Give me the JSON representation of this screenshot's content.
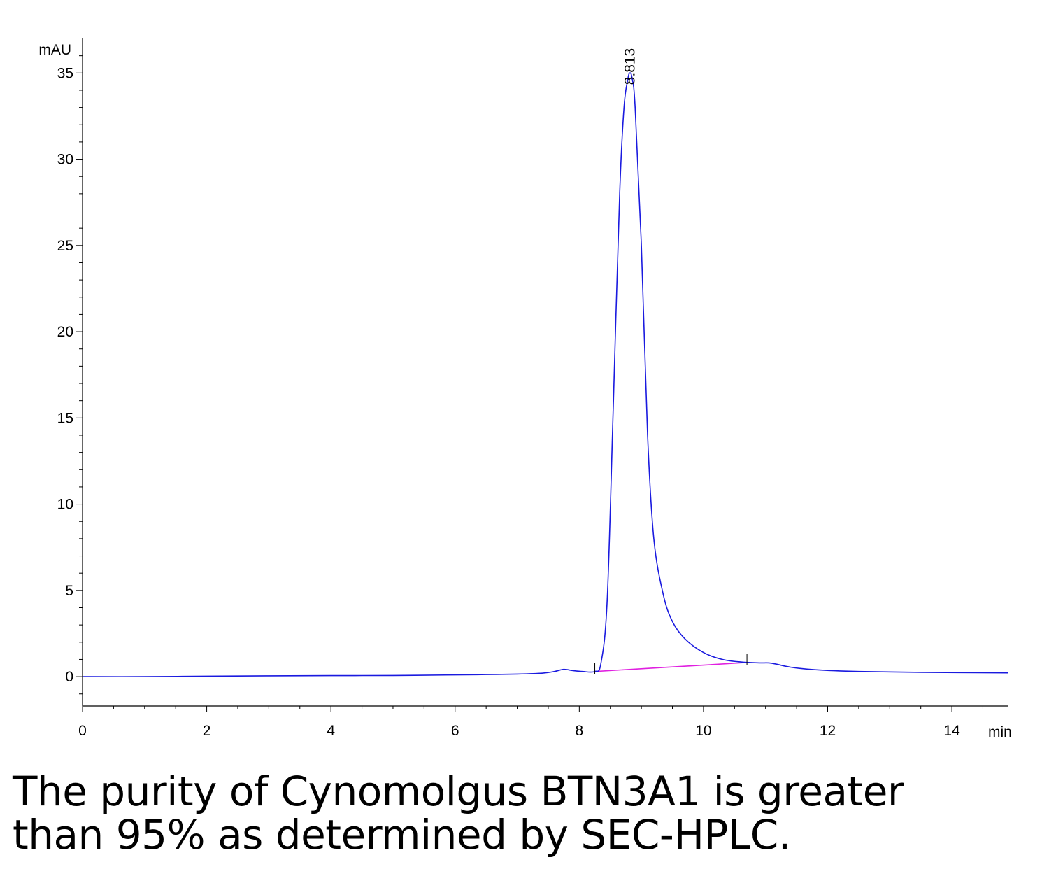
{
  "chart_data": {
    "type": "line",
    "ylabel": "mAU",
    "xlabel": "min",
    "xlim": [
      0,
      14.9
    ],
    "ylim": [
      -1.7,
      37
    ],
    "x_ticks": [
      "0",
      "2",
      "4",
      "6",
      "8",
      "10",
      "12",
      "14"
    ],
    "y_ticks": [
      "0",
      "5",
      "10",
      "15",
      "20",
      "25",
      "30",
      "35"
    ],
    "grid": false,
    "colors": {
      "trace": "#1a1adf",
      "baseline": "#e020e0",
      "axis": "#000000"
    },
    "peak_annotation": {
      "label": "8.813",
      "x": 8.813,
      "y": 35.0
    },
    "series": [
      {
        "x": [
          0,
          1.0,
          2.0,
          3.0,
          4.0,
          5.0,
          6.0,
          6.5,
          7.0,
          7.4,
          7.6,
          7.75,
          7.9,
          8.05,
          8.25,
          8.35,
          8.45,
          8.55,
          8.65,
          8.72,
          8.78,
          8.813,
          8.85,
          8.9,
          9.0,
          9.1,
          9.2,
          9.35,
          9.5,
          9.7,
          10.0,
          10.3,
          10.6,
          10.9,
          11.1,
          11.4,
          11.8,
          12.5,
          13.5,
          14.9
        ],
        "y": [
          0.0,
          0.0,
          0.03,
          0.05,
          0.06,
          0.07,
          0.1,
          0.12,
          0.15,
          0.2,
          0.3,
          0.42,
          0.35,
          0.3,
          0.3,
          0.8,
          4.5,
          16.0,
          28.0,
          33.0,
          34.6,
          35.0,
          34.7,
          33.0,
          25.0,
          14.0,
          8.0,
          4.8,
          3.2,
          2.2,
          1.4,
          1.0,
          0.85,
          0.8,
          0.78,
          0.55,
          0.4,
          0.3,
          0.25,
          0.22
        ]
      }
    ],
    "integration_baseline": {
      "x": [
        8.25,
        10.7
      ],
      "y": [
        0.3,
        0.82
      ]
    },
    "event_marks_x": [
      8.25,
      10.7
    ]
  },
  "caption": {
    "line1": "The purity of Cynomolgus BTN3A1 is greater",
    "line2": "than 95% as determined by SEC-HPLC."
  }
}
